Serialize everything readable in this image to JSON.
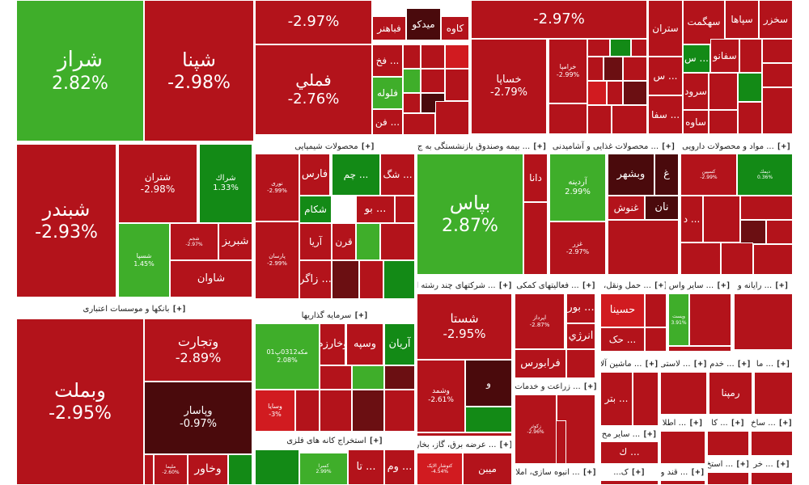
{
  "colors": {
    "up": "#3fae2a",
    "up_strong": "#138a16",
    "up_light": "#7ed957",
    "down": "#b3131b",
    "down_strong": "#d11b20",
    "down_dark": "#6b0f12",
    "down_darker": "#4a0a0c"
  },
  "groups": [
    {
      "label": "بانکها و موسسات اعتباری",
      "expand": "[+]"
    },
    {
      "label": "محصولات شیمیایی",
      "expand": "[+]"
    },
    {
      "label": "بیمه وصندوق بازنشستگی به ج ...",
      "expand": "[+]"
    },
    {
      "label": "محصولات غذایی و آشامیدنی ...",
      "expand": "[+]"
    },
    {
      "label": "مواد و محصولات دارویی ...",
      "expand": "[+]"
    },
    {
      "label": "سرمایه گذاریها",
      "expand": "[+]"
    },
    {
      "label": "شرکتهای چند رشته ا ...",
      "expand": "[+]"
    },
    {
      "label": "فعالیتهای کمکی ...",
      "expand": "[+]"
    },
    {
      "label": "حمل ونقل، ا ...",
      "expand": "[+]"
    },
    {
      "label": "سایر واس ...",
      "expand": "[+]"
    },
    {
      "label": "رایانه و ...",
      "expand": "[+]"
    },
    {
      "label": "استخراج کانه های فلزی",
      "expand": "[+]"
    },
    {
      "label": "عرضه برق، گاز، بخار ...",
      "expand": "[+]"
    },
    {
      "label": "زراعت و خدمات ...",
      "expand": "[+]"
    },
    {
      "label": "ماشین آلا ...",
      "expand": "[+]"
    },
    {
      "label": "لاستی ...",
      "expand": "[+]"
    },
    {
      "label": "خدم ...",
      "expand": "[+]"
    },
    {
      "label": "ما ...",
      "expand": "[+]"
    },
    {
      "label": "انبوه سازی، املا ...",
      "expand": "[+]"
    },
    {
      "label": "سایر مح ...",
      "expand": "[+]"
    },
    {
      "label": "اطلا ...",
      "expand": "[+]"
    },
    {
      "label": "کا ...",
      "expand": "[+]"
    },
    {
      "label": "ساخ ...",
      "expand": "[+]"
    },
    {
      "label": "...ک",
      "expand": "[+]"
    },
    {
      "label": "قند و ...",
      "expand": "[+]"
    },
    {
      "label": "استخ ...",
      "expand": "[+]"
    },
    {
      "label": "خر ...",
      "expand": "[+]"
    }
  ],
  "tiles": [
    {
      "name": "شراز",
      "pct": "2.82%",
      "color": "up"
    },
    {
      "name": "شپنا",
      "pct": "-2.98%",
      "color": "down"
    },
    {
      "name": "",
      "pct": "-2.97%",
      "color": "down"
    },
    {
      "name": "فملي",
      "pct": "-2.76%",
      "color": "down"
    },
    {
      "name": "",
      "pct": "-2.97%",
      "color": "down"
    },
    {
      "name": "خساپا",
      "pct": "-2.79%",
      "color": "down"
    },
    {
      "name": "خرامپا",
      "pct": "-2.99%",
      "color": "down"
    },
    {
      "name": "شبندر",
      "pct": "-2.93%",
      "color": "down"
    },
    {
      "name": "شتران",
      "pct": "-2.98%",
      "color": "down"
    },
    {
      "name": "شراك",
      "pct": "1.33%",
      "color": "up_strong"
    },
    {
      "name": "شسپا",
      "pct": "1.45%",
      "color": "up"
    },
    {
      "name": "شبریز",
      "pct": "",
      "color": "down"
    },
    {
      "name": "شاوان",
      "pct": "",
      "color": "down"
    },
    {
      "name": "شجم",
      "pct": "-2.97%",
      "color": "down"
    },
    {
      "name": "وبملت",
      "pct": "-2.95%",
      "color": "down"
    },
    {
      "name": "وتجارت",
      "pct": "-2.89%",
      "color": "down"
    },
    {
      "name": "وپاسار",
      "pct": "-0.97%",
      "color": "down_darker"
    },
    {
      "name": "وخاور",
      "pct": "",
      "color": "down"
    },
    {
      "name": "بپاس",
      "pct": "2.87%",
      "color": "up"
    },
    {
      "name": "دانا",
      "pct": "",
      "color": "down"
    },
    {
      "name": "آردینه",
      "pct": "2.99%",
      "color": "up"
    },
    {
      "name": "غزر",
      "pct": "-2.97%",
      "color": "down"
    },
    {
      "name": "وبشهر",
      "pct": "",
      "color": "down_darker"
    },
    {
      "name": "غنوش",
      "pct": "",
      "color": "down"
    },
    {
      "name": "نان",
      "pct": "",
      "color": "down_darker"
    },
    {
      "name": "غ",
      "pct": "",
      "color": "down_darker"
    },
    {
      "name": "شستا",
      "pct": "-2.95%",
      "color": "down"
    },
    {
      "name": "وشمد",
      "pct": "-2.61%",
      "color": "down"
    },
    {
      "name": "و",
      "pct": "",
      "color": "down_darker"
    },
    {
      "name": "آریان",
      "pct": "",
      "color": "up_strong"
    },
    {
      "name": "وسپه",
      "pct": "",
      "color": "down"
    },
    {
      "name": "وخارزم",
      "pct": "",
      "color": "down"
    },
    {
      "name": "مکه0312پ01",
      "pct": "2.08%",
      "color": "up"
    },
    {
      "name": "وسایا",
      "pct": "-3%",
      "color": "down_strong"
    },
    {
      "name": "فارس",
      "pct": "",
      "color": "down"
    },
    {
      "name": "شکام",
      "pct": "",
      "color": "up_strong"
    },
    {
      "name": "آریا",
      "pct": "",
      "color": "down"
    },
    {
      "name": "قرن",
      "pct": "",
      "color": "down"
    },
    {
      "name": "نوری",
      "pct": "-2.99%",
      "color": "down"
    },
    {
      "name": "پارسان",
      "pct": "-2.99%",
      "color": "down"
    },
    {
      "name": "زاگر ...",
      "pct": "",
      "color": "down"
    },
    {
      "name": "بو ...",
      "pct": "",
      "color": "down"
    },
    {
      "name": "شگ ...",
      "pct": "",
      "color": "down"
    },
    {
      "name": "چم ...",
      "pct": "",
      "color": "up_strong"
    },
    {
      "name": "حسینا",
      "pct": "",
      "color": "down_strong"
    },
    {
      "name": "حک ...",
      "pct": "",
      "color": "down"
    },
    {
      "name": "انرژي",
      "pct": "",
      "color": "down"
    },
    {
      "name": "بور ...",
      "pct": "",
      "color": "down"
    },
    {
      "name": "فرابورس",
      "pct": "",
      "color": "down"
    },
    {
      "name": "اپرداز",
      "pct": "-2.87%",
      "color": "down"
    },
    {
      "name": "زکوثر",
      "pct": "-2.96%",
      "color": "down"
    },
    {
      "name": "بتر ...",
      "pct": "",
      "color": "down"
    },
    {
      "name": "وپست",
      "pct": "3.91%",
      "color": "up"
    },
    {
      "name": "سخزر",
      "pct": "",
      "color": "down"
    },
    {
      "name": "سپاها",
      "pct": "",
      "color": "down"
    },
    {
      "name": "سهگمت",
      "pct": "",
      "color": "down"
    },
    {
      "name": "ستران",
      "pct": "",
      "color": "down"
    },
    {
      "name": "سفانو",
      "pct": "",
      "color": "down"
    },
    {
      "name": "سرود",
      "pct": "",
      "color": "down"
    },
    {
      "name": "ساوه",
      "pct": "",
      "color": "down"
    },
    {
      "name": "سفا ...",
      "pct": "",
      "color": "down"
    },
    {
      "name": "س ...",
      "pct": "",
      "color": "down"
    },
    {
      "name": "س ...",
      "pct": "",
      "color": "up_strong"
    },
    {
      "name": "كاوه",
      "pct": "",
      "color": "down"
    },
    {
      "name": "میدکو",
      "pct": "",
      "color": "down_darker"
    },
    {
      "name": "فباهنر",
      "pct": "",
      "color": "down"
    },
    {
      "name": "فخ ...",
      "pct": "",
      "color": "down"
    },
    {
      "name": "فلوله",
      "pct": "",
      "color": "up"
    },
    {
      "name": "فن ...",
      "pct": "",
      "color": "down"
    },
    {
      "name": "رمپنا",
      "pct": "",
      "color": "down"
    },
    {
      "name": "کسپین",
      "pct": "-2.99%",
      "color": "down"
    },
    {
      "name": "ديمك",
      "pct": "0.36%",
      "color": "up_strong"
    },
    {
      "name": "د ...",
      "pct": "",
      "color": "down"
    },
    {
      "name": "میبن",
      "pct": "",
      "color": "down"
    },
    {
      "name": "کتوشار الاپک",
      "pct": "-4.54%",
      "color": "down_strong"
    },
    {
      "name": "کسرا",
      "pct": "2.99%",
      "color": "up"
    },
    {
      "name": "تا ...",
      "pct": "",
      "color": "down"
    },
    {
      "name": "وم ...",
      "pct": "",
      "color": "down"
    },
    {
      "name": "ك ...",
      "pct": "",
      "color": "down"
    },
    {
      "name": "ملیما",
      "pct": "-2.60%",
      "color": "down"
    }
  ]
}
